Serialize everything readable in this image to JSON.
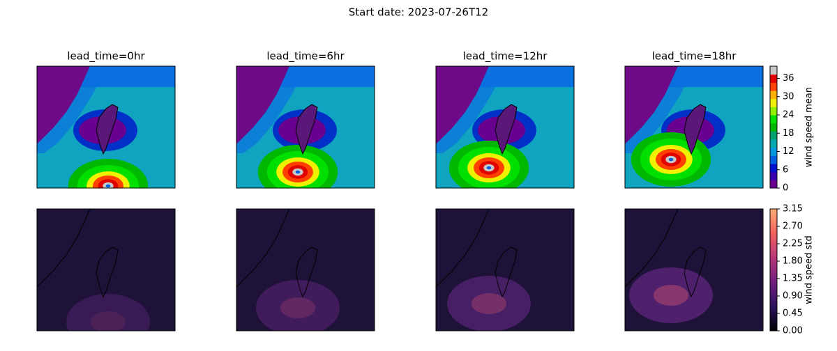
{
  "title": "Start date: 2023-07-26T12",
  "panels": [
    {
      "title": "lead_time=0hr"
    },
    {
      "title": "lead_time=6hr"
    },
    {
      "title": "lead_time=12hr"
    },
    {
      "title": "lead_time=18hr"
    }
  ],
  "colorbars": [
    {
      "label": "wind speed mean",
      "lim": [
        0,
        40
      ],
      "ticks": [
        0,
        6,
        12,
        18,
        24,
        30,
        36
      ],
      "colors": [
        "#6a0090",
        "#3a00b0",
        "#0010d0",
        "#0060e0",
        "#0098dd",
        "#00a8b0",
        "#00a070",
        "#00b800",
        "#00e000",
        "#90f000",
        "#f0f000",
        "#ffb000",
        "#ff4000",
        "#e00000",
        "#c8c8c8"
      ]
    },
    {
      "label": "wind speed std",
      "lim": [
        0,
        3.15
      ],
      "ticks": [
        {
          "value": 0,
          "label": "0.00"
        },
        0.45,
        {
          "value": 0.9,
          "label": "0.90"
        },
        1.35,
        {
          "value": 1.8,
          "label": "1.80"
        },
        2.25,
        {
          "value": 2.7,
          "label": "2.70"
        },
        3.15
      ],
      "colors": [
        "#000004",
        "#2c115f",
        "#721f81",
        "#b73779",
        "#f1605d",
        "#feaf77"
      ]
    }
  ]
}
